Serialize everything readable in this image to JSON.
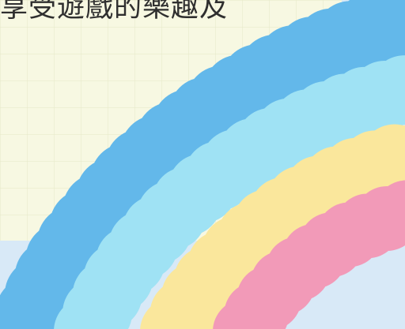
{
  "caption": "享受遊戲的樂趣及",
  "colors": {
    "background_blue": "#d8e9f7",
    "paper_cream": "#f7f8e2",
    "grid_line": "#e8eacc",
    "rainbow_blue": "#63b8ea",
    "rainbow_cyan": "#9fe2f4",
    "rainbow_yellow": "#fae79c",
    "rainbow_pink": "#f29ab8",
    "text": "#2f2f2f"
  },
  "rainbow_bands": [
    "blue",
    "cyan",
    "yellow",
    "pink"
  ]
}
